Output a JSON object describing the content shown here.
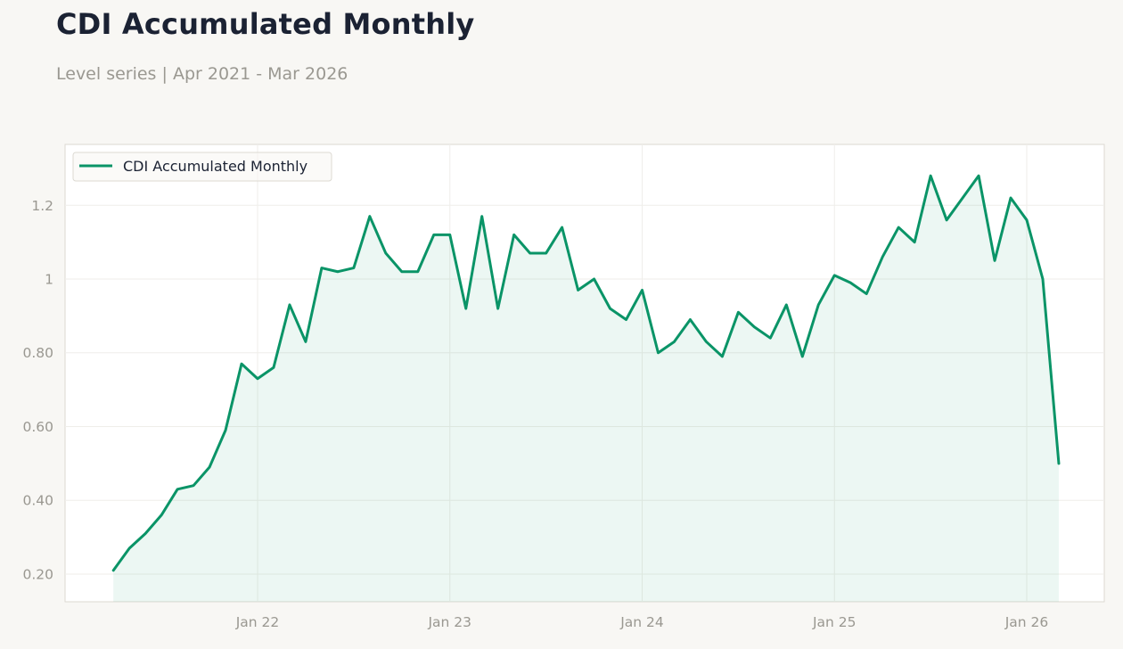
{
  "title": "CDI Accumulated Monthly",
  "subtitle": "Level series | Apr 2021 - Mar 2026",
  "colors": {
    "line": "#0a9467",
    "fill": "#0a9467",
    "background": "#f8f7f4",
    "plot_background": "#ffffff",
    "grid": "#efeeea",
    "axis_text": "#9a9891",
    "title": "#1b2233"
  },
  "chart_data": {
    "type": "area",
    "title": "CDI Accumulated Monthly",
    "subtitle": "Level series | Apr 2021 - Mar 2026",
    "xlabel": "",
    "ylabel": "",
    "legend_position": "top-left",
    "grid": true,
    "x_ticks": [
      "Jan 22",
      "Jan 23",
      "Jan 24",
      "Jan 25",
      "Jan 26"
    ],
    "y_ticks": [
      "0.20",
      "0.40",
      "0.60",
      "0.80",
      "1",
      "1.2"
    ],
    "ylim": [
      0.125,
      1.365
    ],
    "series": [
      {
        "name": "CDI Accumulated Monthly",
        "x": [
          "2021-04",
          "2021-05",
          "2021-06",
          "2021-07",
          "2021-08",
          "2021-09",
          "2021-10",
          "2021-11",
          "2021-12",
          "2022-01",
          "2022-02",
          "2022-03",
          "2022-04",
          "2022-05",
          "2022-06",
          "2022-07",
          "2022-08",
          "2022-09",
          "2022-10",
          "2022-11",
          "2022-12",
          "2023-01",
          "2023-02",
          "2023-03",
          "2023-04",
          "2023-05",
          "2023-06",
          "2023-07",
          "2023-08",
          "2023-09",
          "2023-10",
          "2023-11",
          "2023-12",
          "2024-01",
          "2024-02",
          "2024-03",
          "2024-04",
          "2024-05",
          "2024-06",
          "2024-07",
          "2024-08",
          "2024-09",
          "2024-10",
          "2024-11",
          "2024-12",
          "2025-01",
          "2025-02",
          "2025-03",
          "2025-04",
          "2025-05",
          "2025-06",
          "2025-07",
          "2025-08",
          "2025-09",
          "2025-10",
          "2025-11",
          "2025-12",
          "2026-01",
          "2026-02",
          "2026-03"
        ],
        "values": [
          0.21,
          0.27,
          0.31,
          0.36,
          0.43,
          0.44,
          0.49,
          0.59,
          0.77,
          0.73,
          0.76,
          0.93,
          0.83,
          1.03,
          1.02,
          1.03,
          1.17,
          1.07,
          1.02,
          1.02,
          1.12,
          1.12,
          0.92,
          1.17,
          0.92,
          1.12,
          1.07,
          1.07,
          1.14,
          0.97,
          1.0,
          0.92,
          0.89,
          0.97,
          0.8,
          0.83,
          0.89,
          0.83,
          0.79,
          0.91,
          0.87,
          0.84,
          0.93,
          0.79,
          0.93,
          1.01,
          0.99,
          0.96,
          1.06,
          1.14,
          1.1,
          1.28,
          1.16,
          1.22,
          1.28,
          1.05,
          1.22,
          1.16,
          1.0,
          0.5
        ]
      }
    ]
  }
}
